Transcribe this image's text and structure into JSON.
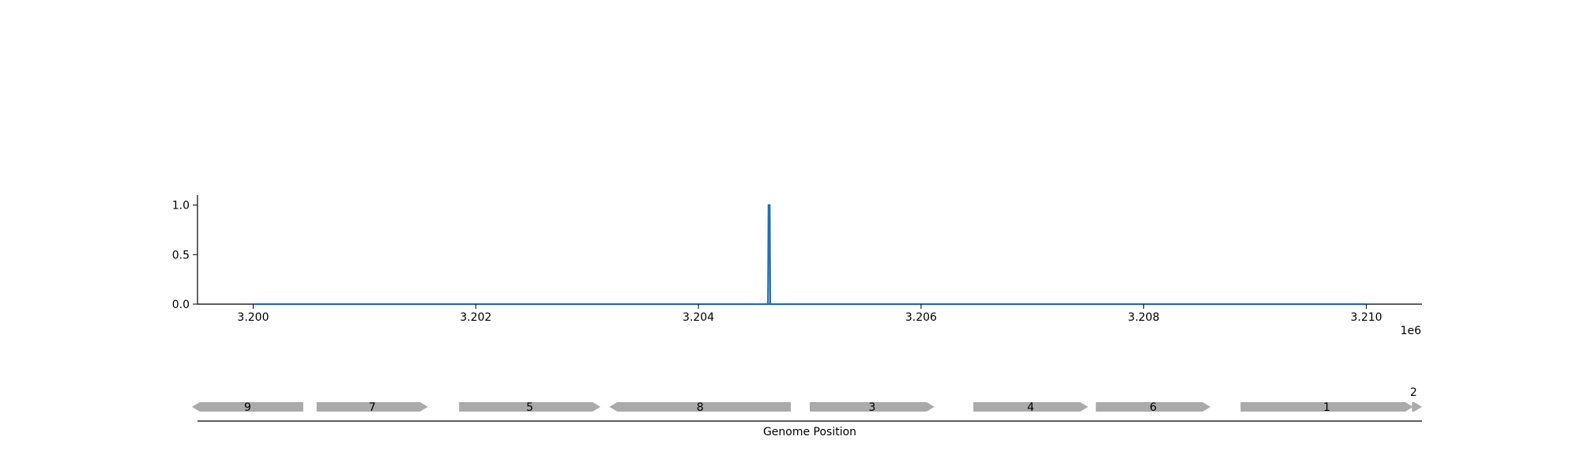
{
  "chart_data": {
    "type": "line",
    "x": [
      3200000,
      3204625,
      3204630,
      3204640,
      3204645,
      3210000
    ],
    "series": [
      {
        "values": [
          0.0,
          0.0,
          1.0,
          1.0,
          0.0,
          0.0
        ],
        "color": "#1f6fb4"
      }
    ],
    "xlim": [
      3199500,
      3210500
    ],
    "ylim": [
      0,
      1.1
    ],
    "x_ticks": [
      "3.200",
      "3.202",
      "3.204",
      "3.206",
      "3.208",
      "3.210"
    ],
    "x_tick_values": [
      3200000,
      3202000,
      3204000,
      3206000,
      3208000,
      3210000
    ],
    "y_ticks": [
      "0.0",
      "0.5",
      "1.0"
    ],
    "y_tick_values": [
      0.0,
      0.5,
      1.0
    ],
    "x_offset_label": "1e6",
    "xlabel": "Genome Position",
    "ylabel": "",
    "grid": false,
    "gene_track": {
      "color": "#aaaaaa",
      "genes": [
        {
          "label": "9",
          "start": 3199450,
          "end": 3200450,
          "strand": "-"
        },
        {
          "label": "7",
          "start": 3200570,
          "end": 3201570,
          "strand": "+"
        },
        {
          "label": "5",
          "start": 3201850,
          "end": 3203120,
          "strand": "+"
        },
        {
          "label": "8",
          "start": 3203200,
          "end": 3204830,
          "strand": "-"
        },
        {
          "label": "3",
          "start": 3205000,
          "end": 3206120,
          "strand": "+"
        },
        {
          "label": "4",
          "start": 3206470,
          "end": 3207500,
          "strand": "+"
        },
        {
          "label": "6",
          "start": 3207570,
          "end": 3208600,
          "strand": "+"
        },
        {
          "label": "1",
          "start": 3208870,
          "end": 3210420,
          "strand": "+"
        },
        {
          "label": "2",
          "start": 3210410,
          "end": 3210500,
          "strand": "+"
        }
      ]
    }
  }
}
